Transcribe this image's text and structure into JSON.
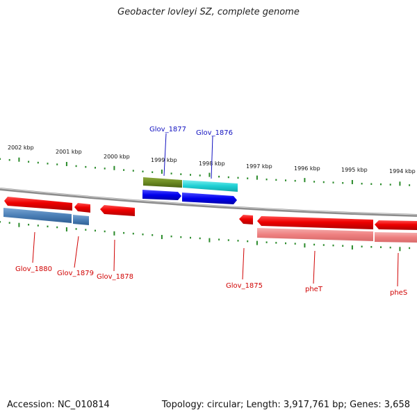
{
  "header": {
    "title": "Geobacter lovleyi SZ, complete genome"
  },
  "footer": {
    "accession": "Accession: NC_010814",
    "summary": "Topology: circular; Length: 3,917,761 bp; Genes: 3,658"
  },
  "scale": {
    "upper_ticks": [
      "2002 kbp",
      "2001 kbp",
      "2000 kbp",
      "1999 kbp",
      "1998 kbp",
      "1997 kbp",
      "1996 kbp",
      "1995 kbp",
      "1994 kbp"
    ]
  },
  "genes": {
    "forward_labels": [
      "Glov_1877",
      "Glov_1876"
    ],
    "reverse_labels": [
      "Glov_1880",
      "Glov_1879",
      "Glov_1878",
      "Glov_1875",
      "pheT",
      "pheS"
    ]
  },
  "colors": {
    "forward_label": "#1010c0",
    "reverse_label": "#d00000",
    "tick_green": "#2a8a2a",
    "backbone": "#8c8c8c"
  }
}
